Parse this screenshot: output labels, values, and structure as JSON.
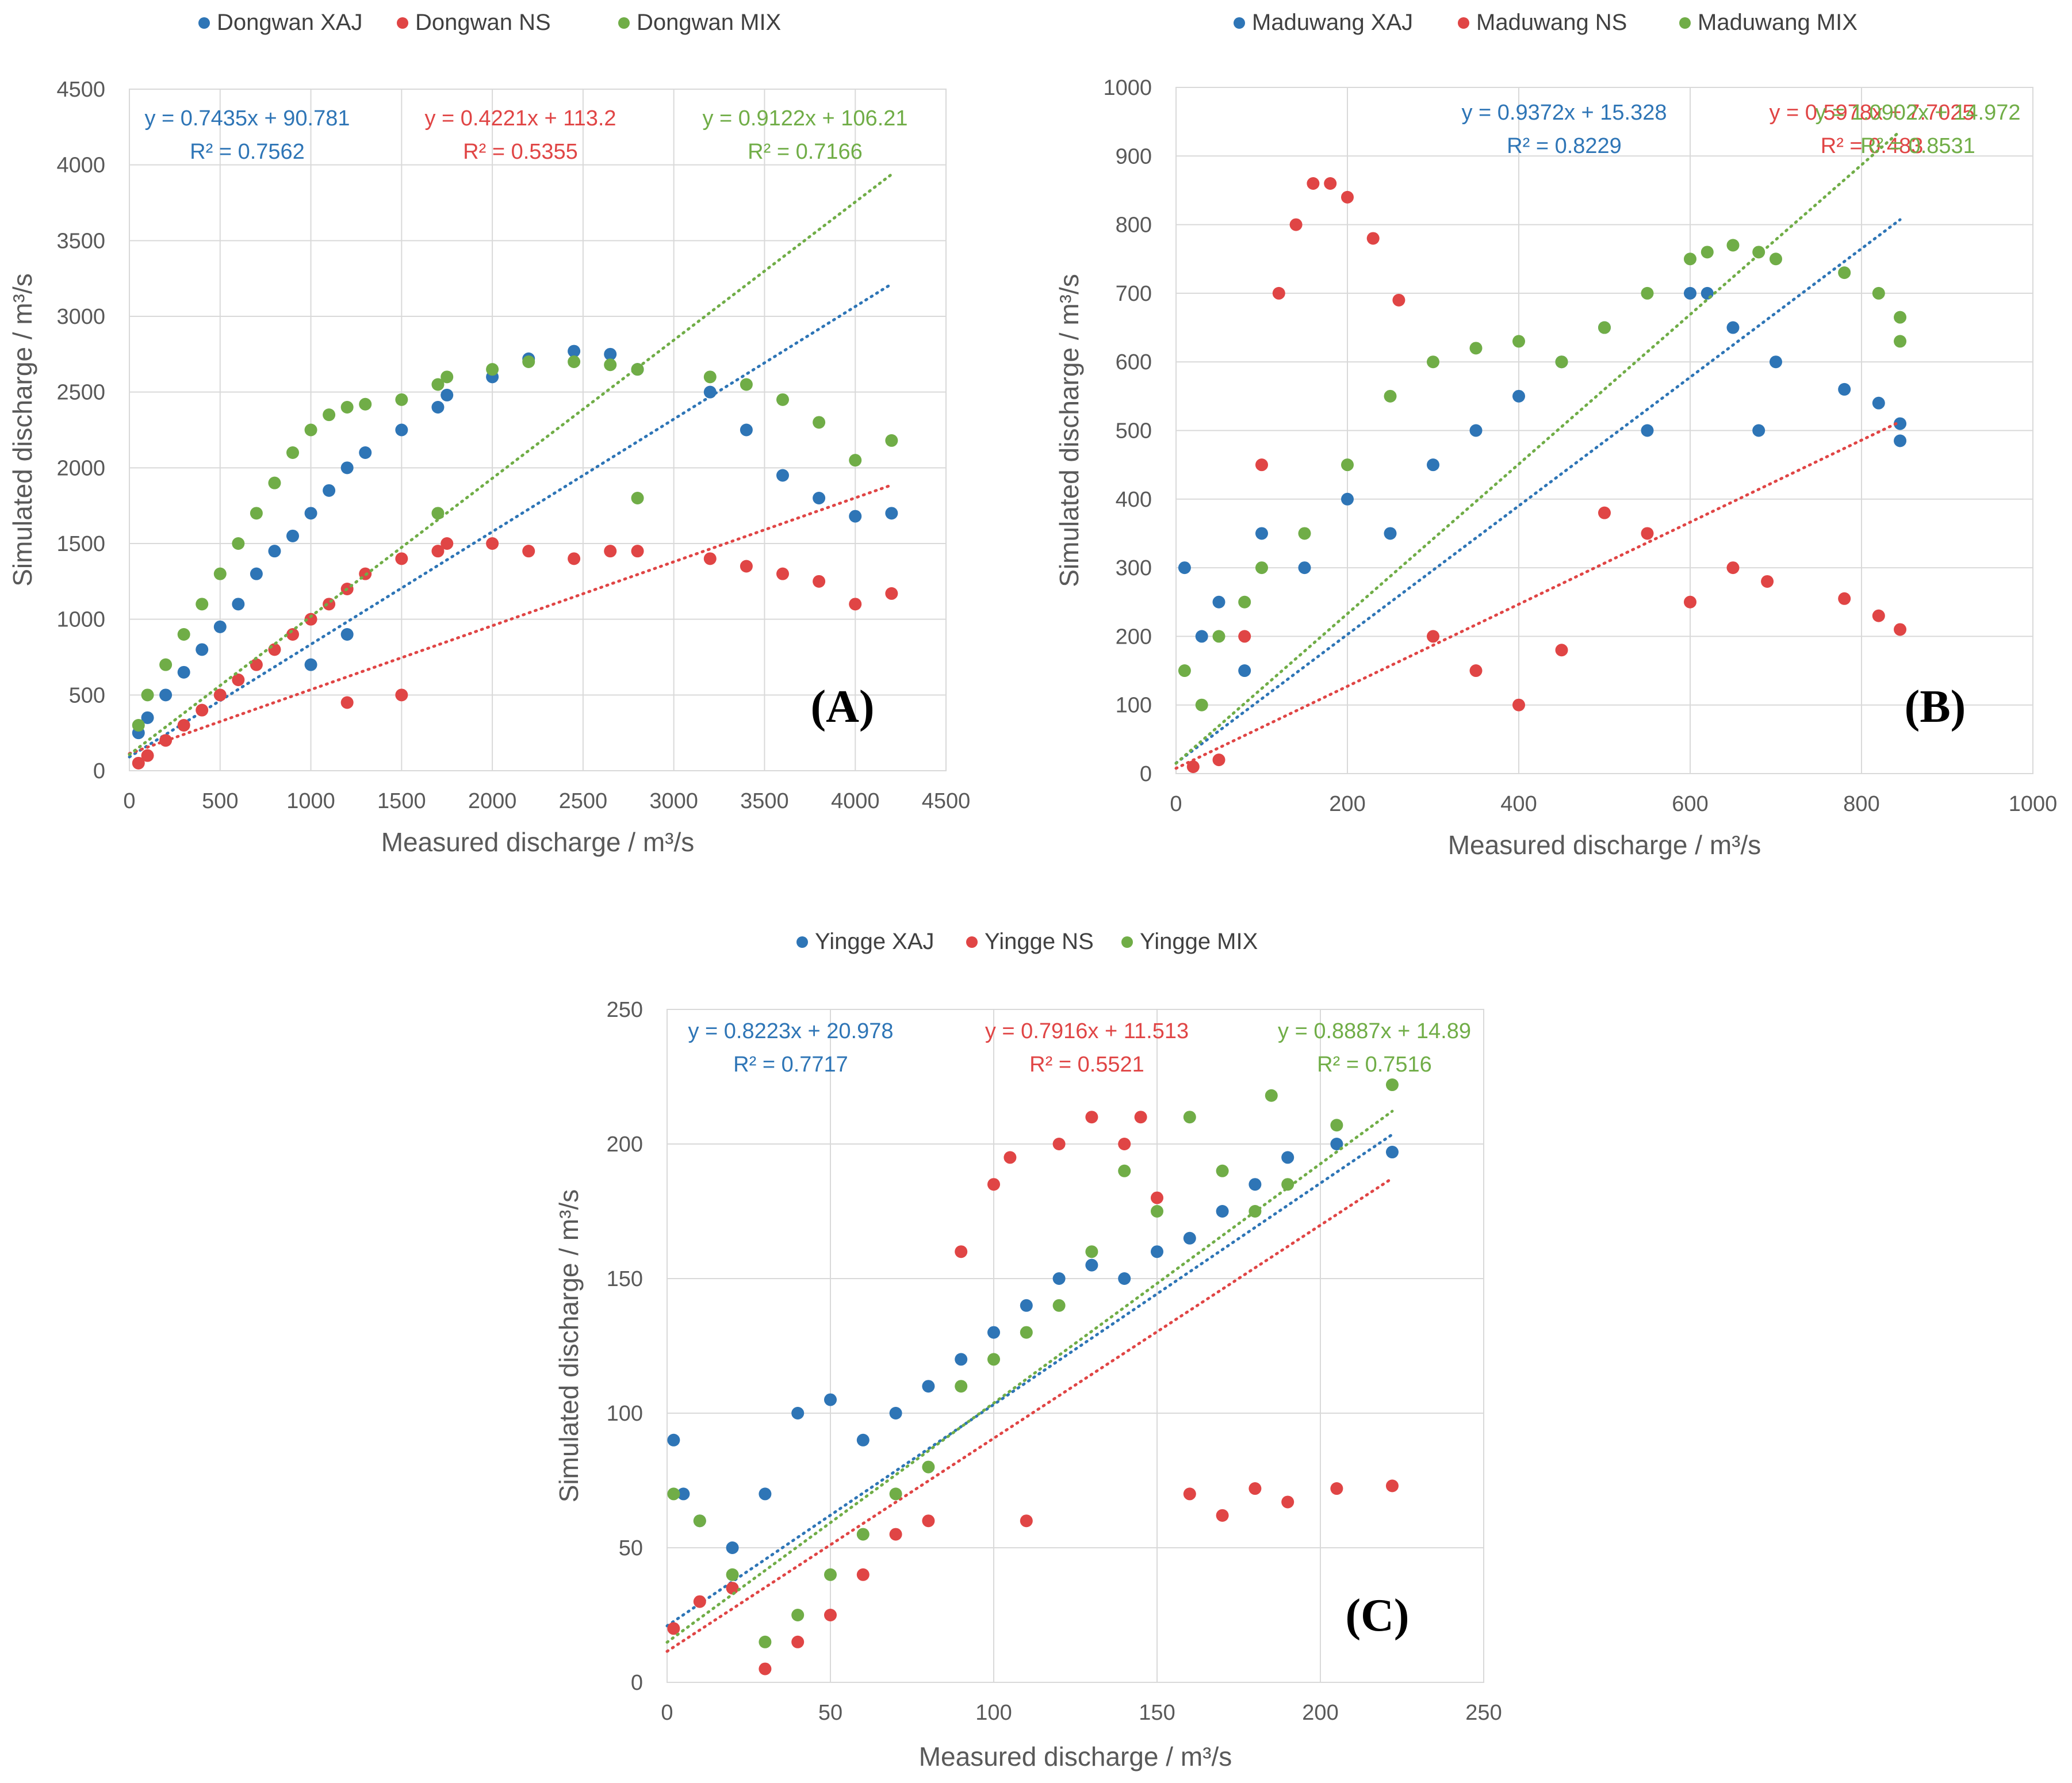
{
  "colors": {
    "xaj": "#2E75B6",
    "ns": "#E04545",
    "mix": "#70AD47",
    "grid": "#D9D9D9",
    "text": "#595959"
  },
  "chart_data": [
    {
      "type": "scatter",
      "panel_label": "(A)",
      "xlabel": "Measured discharge / m³/s",
      "ylabel": "Simulated discharge / m³/s",
      "xlim": [
        0,
        4500
      ],
      "ylim": [
        0,
        4500
      ],
      "xticks": [
        0,
        500,
        1000,
        1500,
        2000,
        2500,
        3000,
        3500,
        4000,
        4500
      ],
      "yticks": [
        0,
        500,
        1000,
        1500,
        2000,
        2500,
        3000,
        3500,
        4000,
        4500
      ],
      "legend_position": "top",
      "series": [
        {
          "name": "Dongwan XAJ",
          "color_key": "xaj",
          "equation": "y = 0.7435x + 90.781",
          "r2": "R² = 0.7562",
          "trend": {
            "slope": 0.7435,
            "intercept": 90.781,
            "x_range": [
              0,
              4200
            ]
          },
          "x": [
            50,
            100,
            200,
            300,
            400,
            500,
            600,
            700,
            800,
            900,
            1000,
            1100,
            1200,
            1300,
            1500,
            1700,
            1750,
            2000,
            2200,
            2450,
            2650,
            2800,
            3200,
            3400,
            3600,
            3800,
            4000,
            4200,
            1200,
            1000
          ],
          "y": [
            250,
            350,
            500,
            650,
            800,
            950,
            1100,
            1300,
            1450,
            1550,
            1700,
            1850,
            2000,
            2100,
            2250,
            2400,
            2480,
            2600,
            2720,
            2770,
            2750,
            2650,
            2500,
            2250,
            1950,
            1800,
            1680,
            1700,
            900,
            700
          ]
        },
        {
          "name": "Dongwan NS",
          "color_key": "ns",
          "equation": "y = 0.4221x + 113.2",
          "r2": "R² = 0.5355",
          "trend": {
            "slope": 0.4221,
            "intercept": 113.2,
            "x_range": [
              0,
              4200
            ]
          },
          "x": [
            50,
            100,
            200,
            300,
            400,
            500,
            600,
            700,
            800,
            900,
            1000,
            1100,
            1200,
            1300,
            1500,
            1700,
            1750,
            2000,
            2200,
            2450,
            2650,
            2800,
            3200,
            3400,
            3600,
            3800,
            4000,
            4200,
            1500,
            1200
          ],
          "y": [
            50,
            100,
            200,
            300,
            400,
            500,
            600,
            700,
            800,
            900,
            1000,
            1100,
            1200,
            1300,
            1400,
            1450,
            1500,
            1500,
            1450,
            1400,
            1450,
            1450,
            1400,
            1350,
            1300,
            1250,
            1100,
            1170,
            500,
            450
          ]
        },
        {
          "name": "Dongwan MIX",
          "color_key": "mix",
          "equation": "y = 0.9122x + 106.21",
          "r2": "R² = 0.7166",
          "trend": {
            "slope": 0.9122,
            "intercept": 106.21,
            "x_range": [
              0,
              4200
            ]
          },
          "x": [
            50,
            100,
            200,
            300,
            400,
            500,
            600,
            700,
            800,
            900,
            1000,
            1100,
            1200,
            1300,
            1500,
            1700,
            1750,
            2000,
            2200,
            2450,
            2650,
            2800,
            3200,
            3400,
            3600,
            3800,
            4000,
            4200,
            1700,
            2800
          ],
          "y": [
            300,
            500,
            700,
            900,
            1100,
            1300,
            1500,
            1700,
            1900,
            2100,
            2250,
            2350,
            2400,
            2420,
            2450,
            2550,
            2600,
            2650,
            2700,
            2700,
            2680,
            2650,
            2600,
            2550,
            2450,
            2300,
            2050,
            2180,
            1700,
            1800
          ]
        }
      ]
    },
    {
      "type": "scatter",
      "panel_label": "(B)",
      "xlabel": "Measured discharge / m³/s",
      "ylabel": "Simulated discharge / m³/s",
      "xlim": [
        0,
        1000
      ],
      "ylim": [
        0,
        1000
      ],
      "xticks": [
        0,
        200,
        400,
        600,
        800,
        1000
      ],
      "yticks": [
        0,
        100,
        200,
        300,
        400,
        500,
        600,
        700,
        800,
        900,
        1000
      ],
      "legend_position": "top",
      "series": [
        {
          "name": "Maduwang XAJ",
          "color_key": "xaj",
          "equation": "y = 0.9372x + 15.328",
          "r2": "R² = 0.8229",
          "trend": {
            "slope": 0.9372,
            "intercept": 15.328,
            "x_range": [
              0,
              845
            ]
          },
          "x": [
            10,
            30,
            50,
            80,
            100,
            150,
            200,
            250,
            300,
            350,
            400,
            450,
            500,
            550,
            600,
            620,
            650,
            680,
            700,
            780,
            820,
            845,
            845
          ],
          "y": [
            300,
            200,
            250,
            150,
            350,
            300,
            400,
            350,
            450,
            500,
            550,
            600,
            650,
            500,
            700,
            700,
            650,
            500,
            600,
            560,
            540,
            510,
            485
          ]
        },
        {
          "name": "Maduwang NS",
          "color_key": "ns",
          "equation": "y = 0.5978x + 7.7025",
          "r2": "R² = 0.483",
          "trend": {
            "slope": 0.5978,
            "intercept": 7.7025,
            "x_range": [
              0,
              845
            ]
          },
          "x": [
            20,
            50,
            80,
            100,
            120,
            140,
            160,
            180,
            200,
            230,
            260,
            300,
            350,
            400,
            450,
            500,
            550,
            600,
            650,
            690,
            780,
            820,
            845
          ],
          "y": [
            10,
            20,
            200,
            450,
            700,
            800,
            860,
            860,
            840,
            780,
            690,
            200,
            150,
            100,
            180,
            380,
            350,
            250,
            300,
            280,
            255,
            230,
            210
          ]
        },
        {
          "name": "Maduwang MIX",
          "color_key": "mix",
          "equation": "y = 1.0902x + 14.972",
          "r2": "R² = 0.8531",
          "trend": {
            "slope": 1.0902,
            "intercept": 14.972,
            "x_range": [
              0,
              845
            ]
          },
          "x": [
            10,
            30,
            50,
            80,
            100,
            150,
            200,
            250,
            300,
            350,
            400,
            450,
            500,
            550,
            600,
            620,
            650,
            680,
            700,
            780,
            820,
            845,
            845
          ],
          "y": [
            150,
            100,
            200,
            250,
            300,
            350,
            450,
            550,
            600,
            620,
            630,
            600,
            650,
            700,
            750,
            760,
            770,
            760,
            750,
            730,
            700,
            665,
            630
          ]
        }
      ]
    },
    {
      "type": "scatter",
      "panel_label": "(C)",
      "xlabel": "Measured discharge / m³/s",
      "ylabel": "Simulated discharge / m³/s",
      "xlim": [
        0,
        250
      ],
      "ylim": [
        0,
        250
      ],
      "xticks": [
        0,
        50,
        100,
        150,
        200,
        250
      ],
      "yticks": [
        0,
        50,
        100,
        150,
        200,
        250
      ],
      "legend_position": "top",
      "series": [
        {
          "name": "Yingge XAJ",
          "color_key": "xaj",
          "equation": "y = 0.8223x + 20.978",
          "r2": "R² = 0.7717",
          "trend": {
            "slope": 0.8223,
            "intercept": 20.978,
            "x_range": [
              0,
              222
            ]
          },
          "x": [
            2,
            5,
            10,
            20,
            30,
            40,
            50,
            60,
            70,
            80,
            90,
            100,
            110,
            120,
            130,
            140,
            150,
            160,
            170,
            180,
            190,
            205,
            222
          ],
          "y": [
            90,
            70,
            60,
            50,
            70,
            100,
            105,
            90,
            100,
            110,
            120,
            130,
            140,
            150,
            155,
            150,
            160,
            165,
            175,
            185,
            195,
            200,
            197
          ]
        },
        {
          "name": "Yingge NS",
          "color_key": "ns",
          "equation": "y = 0.7916x + 11.513",
          "r2": "R² = 0.5521",
          "trend": {
            "slope": 0.7916,
            "intercept": 11.513,
            "x_range": [
              0,
              222
            ]
          },
          "x": [
            2,
            10,
            20,
            30,
            40,
            50,
            60,
            70,
            80,
            90,
            100,
            105,
            110,
            120,
            130,
            140,
            145,
            150,
            160,
            170,
            180,
            190,
            205,
            222
          ],
          "y": [
            20,
            30,
            35,
            5,
            15,
            25,
            40,
            55,
            60,
            160,
            185,
            195,
            60,
            200,
            210,
            200,
            210,
            180,
            70,
            62,
            72,
            67,
            72,
            73
          ]
        },
        {
          "name": "Yingge MIX",
          "color_key": "mix",
          "equation": "y = 0.8887x + 14.89",
          "r2": "R² = 0.7516",
          "trend": {
            "slope": 0.8887,
            "intercept": 14.89,
            "x_range": [
              0,
              222
            ]
          },
          "x": [
            2,
            10,
            20,
            30,
            40,
            50,
            60,
            70,
            80,
            90,
            100,
            110,
            120,
            130,
            140,
            150,
            160,
            170,
            180,
            185,
            190,
            205,
            222
          ],
          "y": [
            70,
            60,
            40,
            15,
            25,
            40,
            55,
            70,
            80,
            110,
            120,
            130,
            140,
            160,
            190,
            175,
            210,
            190,
            175,
            218,
            185,
            207,
            222
          ]
        }
      ]
    }
  ]
}
